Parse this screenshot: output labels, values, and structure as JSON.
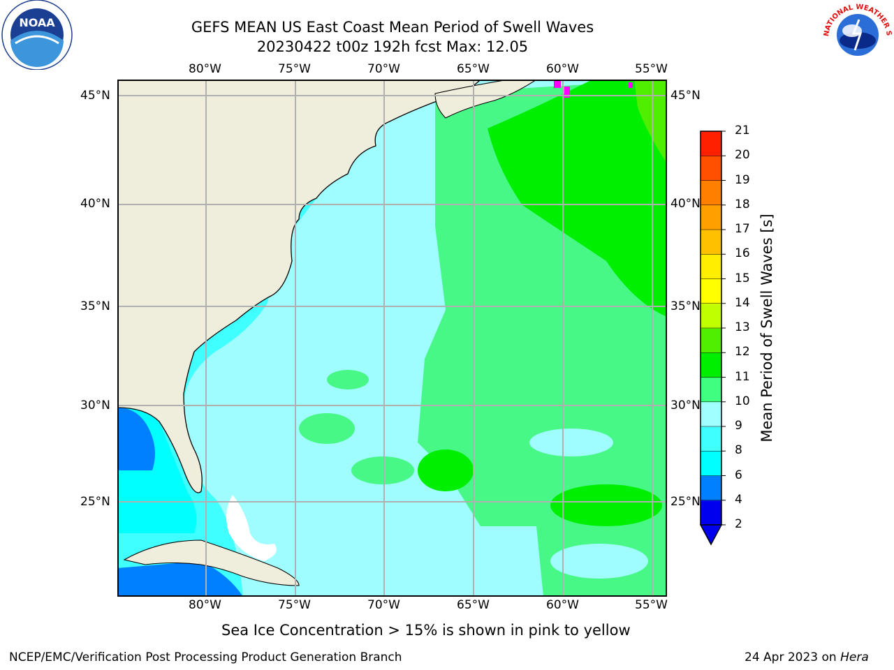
{
  "title": {
    "line1": "GEFS MEAN US East Coast Mean Period of Swell Waves",
    "line2": "20230422 t00z 192h fcst   Max: 12.05"
  },
  "map": {
    "lon_labels": [
      "80°W",
      "75°W",
      "70°W",
      "65°W",
      "60°W",
      "55°W"
    ],
    "lat_labels": [
      "45°N",
      "40°N",
      "35°N",
      "30°N",
      "25°N"
    ]
  },
  "colorbar": {
    "label": "Mean Period of Swell Waves [s]",
    "ticks": [
      "2",
      "4",
      "6",
      "8",
      "9",
      "10",
      "11",
      "12",
      "13",
      "14",
      "15",
      "16",
      "17",
      "18",
      "19",
      "20",
      "21"
    ],
    "colors": [
      "#0000ee",
      "#0080ff",
      "#00ffff",
      "#40ffff",
      "#a0ffff",
      "#40ff80",
      "#00ee00",
      "#50ee00",
      "#c0ff00",
      "#ffff00",
      "#ffee00",
      "#ffc000",
      "#ffa000",
      "#ff8000",
      "#ff5000",
      "#ff2000"
    ]
  },
  "colors": {
    "land": "#efeedc",
    "ocean_deep": "#9ffcff",
    "ocean_green": "#48f886",
    "ocean_bright": "#00ee00",
    "ice": "#ff00ff"
  },
  "note": "Sea Ice Concentration > 15% is shown in pink to yellow",
  "footer": {
    "left": "NCEP/EMC/Verification Post Processing Product Generation Branch",
    "right_prefix": "24 Apr 2023 on ",
    "right_host": "Hera"
  },
  "logos": {
    "noaa_text": "NOAA",
    "nws_text": "NATIONAL WEATHER SERVICE"
  }
}
